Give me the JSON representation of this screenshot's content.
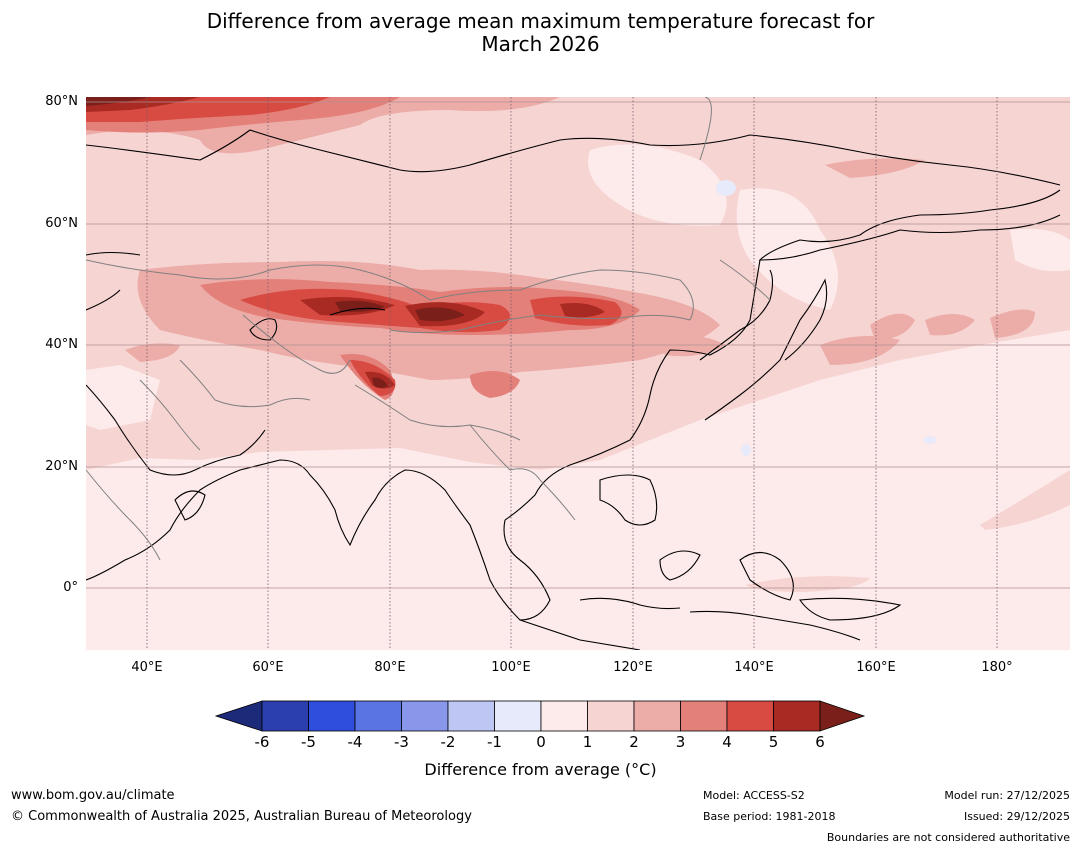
{
  "title": {
    "line1": "Difference from average mean maximum temperature forecast for",
    "line2": "March 2026"
  },
  "map": {
    "region": "Asia",
    "lat_labels": [
      "80°N",
      "60°N",
      "40°N",
      "20°N",
      "0°"
    ],
    "lon_labels": [
      "40°E",
      "60°E",
      "80°E",
      "100°E",
      "120°E",
      "140°E",
      "160°E",
      "180°"
    ],
    "land_outline_color": "#000000",
    "border_color": "#808080",
    "gridline_color": "#b09090"
  },
  "colorbar": {
    "ticks": [
      "-6",
      "-5",
      "-4",
      "-3",
      "-2",
      "-1",
      "0",
      "1",
      "2",
      "3",
      "4",
      "5",
      "6"
    ],
    "under_color": "#1c2a7a",
    "over_color": "#7b1f1a",
    "colors": [
      "#2b3fae",
      "#2f4edc",
      "#5b74e4",
      "#8897ea",
      "#bec6f4",
      "#e7eafa",
      "#fdeaea",
      "#f6d4d2",
      "#ecaca8",
      "#e4807a",
      "#d84b42",
      "#a82a22"
    ],
    "label": "Difference from average (°C)"
  },
  "footer": {
    "website": "www.bom.gov.au/climate",
    "copyright": "© Commonwealth of Australia 2025, Australian Bureau of Meteorology",
    "model": "Model: ACCESS-S2",
    "base_period": "Base period: 1981-2018",
    "model_run": "Model run: 27/12/2025",
    "issued": "Issued: 29/12/2025",
    "disclaimer": "Boundaries are not considered authoritative"
  }
}
